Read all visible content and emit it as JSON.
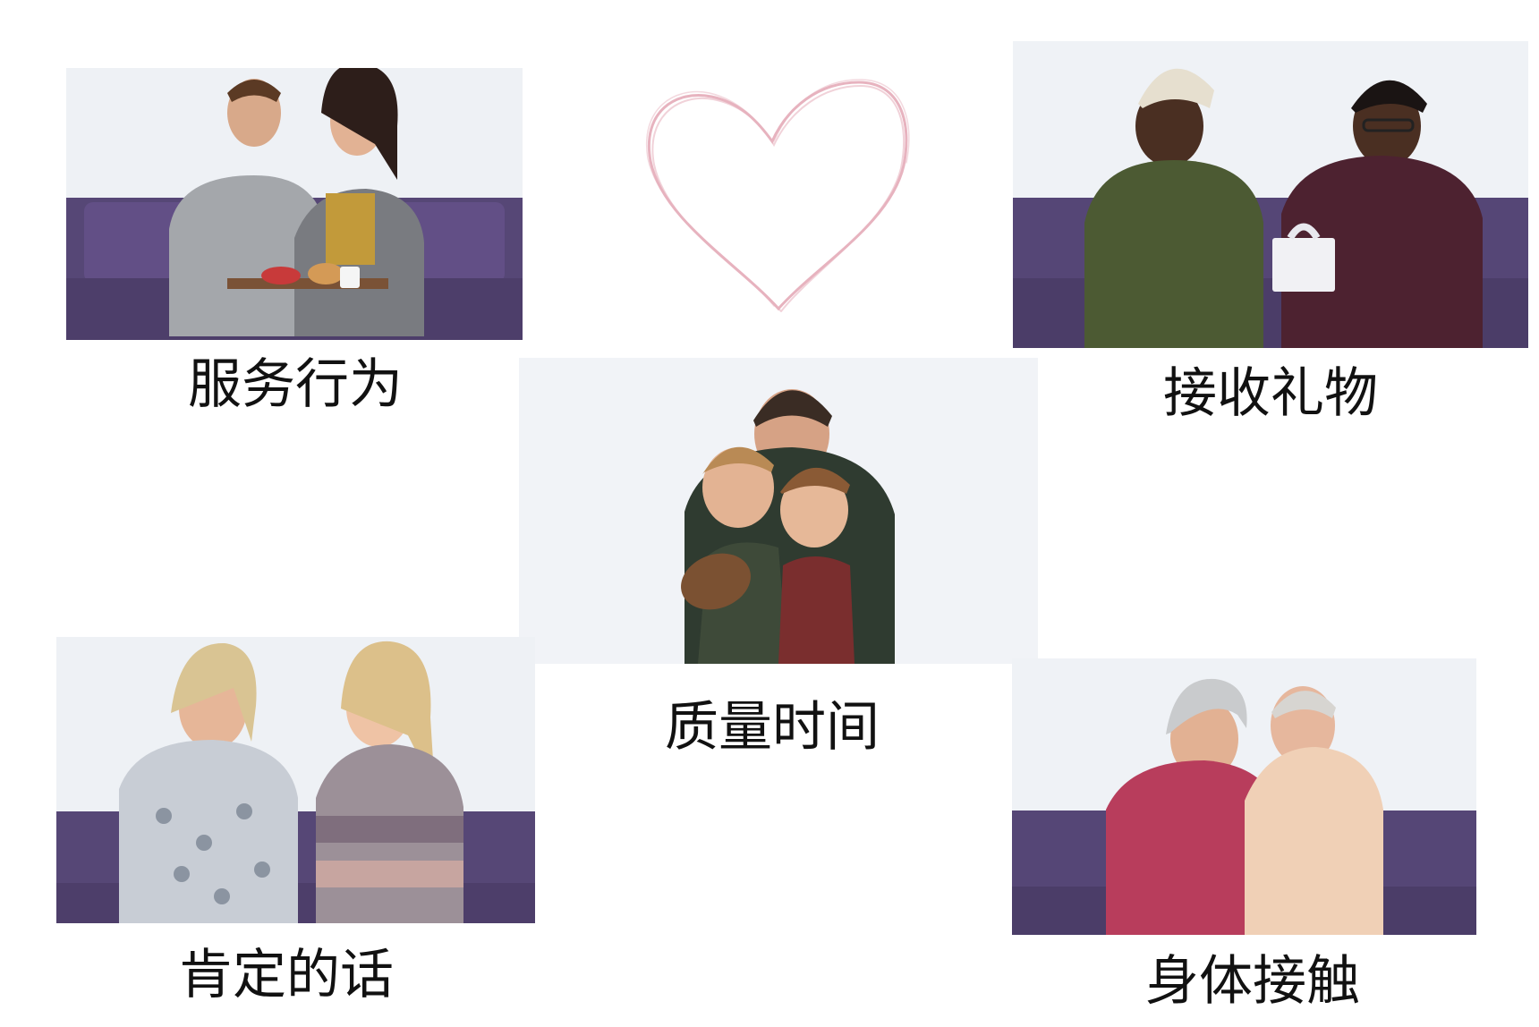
{
  "panels": [
    {
      "caption": "服务行为",
      "image": "couple with breakfast tray on purple sofa"
    },
    {
      "caption": "接收礼物",
      "image": "man giving gift box to woman on purple sofa"
    },
    {
      "caption": "质量时间",
      "image": "father hugging two boys holding football"
    },
    {
      "caption": "肯定的话",
      "image": "two women talking on purple sofa"
    },
    {
      "caption": "身体接触",
      "image": "older couple embracing on purple sofa"
    }
  ],
  "heart": {
    "icon": "heart-sketch-icon",
    "color": "#e3a6b4"
  },
  "colors": {
    "sofa": "#5a4a78",
    "background": "#ffffff"
  }
}
